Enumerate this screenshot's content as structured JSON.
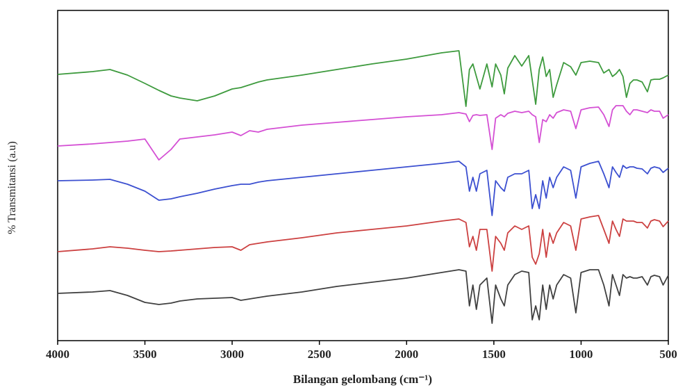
{
  "chart_data": {
    "type": "line",
    "xlabel": "Bilangan gelombang (cm⁻¹)",
    "ylabel": "% Transmitansi (a.u)",
    "xlim": [
      4000,
      500
    ],
    "ylim": [
      0,
      475
    ],
    "xticks": [
      4000,
      3500,
      3000,
      2500,
      2000,
      1500,
      1000,
      500
    ],
    "x": [
      4000,
      3800,
      3700,
      3600,
      3500,
      3420,
      3350,
      3300,
      3200,
      3100,
      3000,
      2950,
      2900,
      2850,
      2800,
      2600,
      2400,
      2200,
      2000,
      1800,
      1700,
      1660,
      1640,
      1620,
      1600,
      1580,
      1540,
      1510,
      1490,
      1460,
      1440,
      1420,
      1380,
      1340,
      1300,
      1280,
      1260,
      1240,
      1220,
      1200,
      1180,
      1160,
      1140,
      1100,
      1060,
      1030,
      1000,
      950,
      900,
      870,
      840,
      820,
      800,
      780,
      760,
      740,
      720,
      700,
      680,
      650,
      620,
      600,
      580,
      550,
      530,
      500
    ],
    "series": [
      {
        "color": "#3d9a3d",
        "values": [
          383,
          387,
          390,
          382,
          370,
          360,
          352,
          349,
          345,
          352,
          362,
          364,
          368,
          372,
          375,
          382,
          390,
          398,
          405,
          414,
          417,
          337,
          390,
          398,
          380,
          362,
          398,
          365,
          398,
          382,
          355,
          392,
          410,
          395,
          410,
          375,
          340,
          390,
          408,
          380,
          390,
          350,
          368,
          400,
          394,
          382,
          400,
          402,
          400,
          385,
          390,
          380,
          384,
          390,
          380,
          350,
          370,
          375,
          375,
          372,
          358,
          375,
          376,
          376,
          378,
          382
        ]
      },
      {
        "color": "#d44fd4",
        "values": [
          280,
          283,
          285,
          287,
          290,
          260,
          275,
          290,
          293,
          296,
          300,
          295,
          302,
          300,
          304,
          310,
          314,
          318,
          322,
          325,
          328,
          326,
          315,
          324,
          325,
          324,
          325,
          275,
          320,
          325,
          322,
          327,
          330,
          328,
          330,
          325,
          322,
          285,
          318,
          315,
          325,
          320,
          328,
          332,
          330,
          305,
          332,
          335,
          336,
          325,
          308,
          332,
          338,
          338,
          338,
          330,
          325,
          332,
          332,
          330,
          328,
          332,
          330,
          330,
          320,
          325
        ]
      },
      {
        "color": "#3b4fd0",
        "values": [
          230,
          231,
          232,
          225,
          215,
          202,
          204,
          207,
          212,
          218,
          223,
          225,
          225,
          228,
          230,
          235,
          240,
          245,
          250,
          255,
          258,
          250,
          215,
          235,
          215,
          240,
          245,
          180,
          230,
          220,
          215,
          235,
          240,
          240,
          245,
          190,
          210,
          190,
          230,
          205,
          235,
          220,
          235,
          250,
          245,
          205,
          250,
          255,
          258,
          240,
          220,
          250,
          242,
          235,
          252,
          248,
          250,
          250,
          248,
          247,
          240,
          248,
          250,
          248,
          242,
          248
        ]
      },
      {
        "color": "#cc4040",
        "values": [
          128,
          132,
          135,
          133,
          130,
          128,
          129,
          130,
          132,
          134,
          135,
          130,
          138,
          140,
          142,
          148,
          155,
          160,
          165,
          172,
          175,
          170,
          135,
          150,
          130,
          160,
          160,
          100,
          150,
          140,
          130,
          155,
          165,
          160,
          165,
          120,
          110,
          125,
          160,
          120,
          155,
          140,
          155,
          170,
          165,
          130,
          175,
          178,
          180,
          160,
          140,
          172,
          160,
          150,
          175,
          172,
          172,
          172,
          170,
          170,
          162,
          172,
          174,
          172,
          164,
          172
        ]
      },
      {
        "color": "#404040",
        "values": [
          68,
          70,
          72,
          65,
          55,
          52,
          54,
          57,
          60,
          61,
          62,
          58,
          60,
          62,
          64,
          70,
          78,
          84,
          90,
          98,
          102,
          100,
          50,
          80,
          45,
          80,
          90,
          25,
          80,
          60,
          50,
          80,
          95,
          100,
          98,
          30,
          50,
          30,
          80,
          45,
          80,
          60,
          80,
          95,
          90,
          40,
          98,
          102,
          102,
          80,
          50,
          95,
          80,
          65,
          95,
          90,
          92,
          90,
          90,
          92,
          80,
          92,
          94,
          92,
          80,
          94
        ]
      }
    ]
  }
}
